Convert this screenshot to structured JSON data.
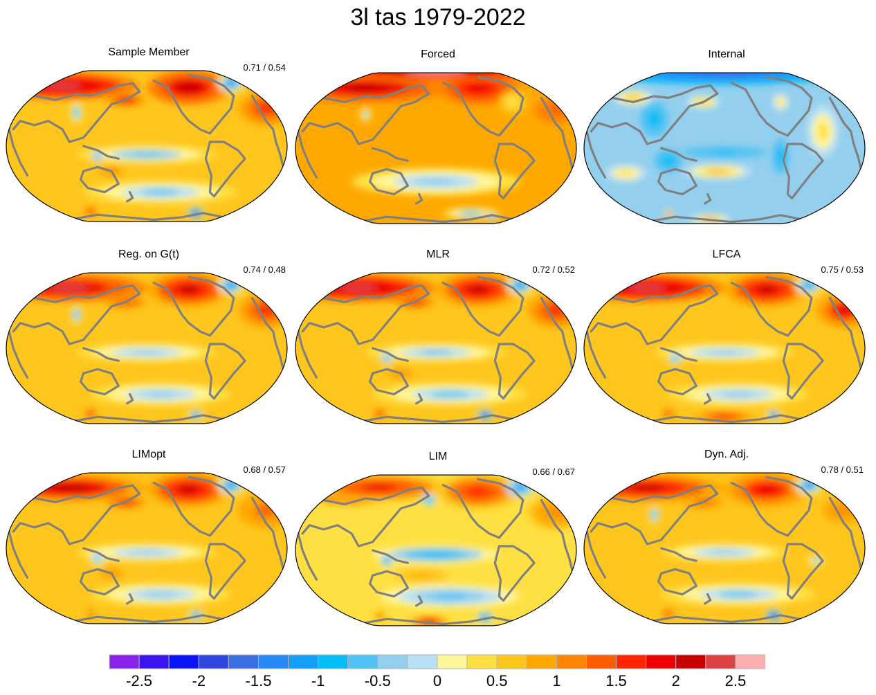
{
  "figure": {
    "title": "3l tas 1979-2022"
  },
  "chart_data": {
    "type": "heatmap",
    "title": "3l tas 1979-2022",
    "projection": "robinson (pacific-centered)",
    "colorbar": {
      "levels": [
        -2.75,
        -2.5,
        -2.25,
        -2,
        -1.75,
        -1.5,
        -1.25,
        -1,
        -0.75,
        -0.5,
        -0.25,
        0,
        0.25,
        0.5,
        0.75,
        1,
        1.25,
        1.5,
        1.75,
        2,
        2.25,
        2.5,
        2.75
      ],
      "colors": [
        "#8a22ee",
        "#3c14f0",
        "#0a14f8",
        "#3048e0",
        "#3a6ee2",
        "#2888f5",
        "#14a0fa",
        "#00bef8",
        "#52c2f2",
        "#94cfee",
        "#b9e1f4",
        "#fff59a",
        "#ffe043",
        "#ffc61e",
        "#ffa900",
        "#ff8500",
        "#ff5c00",
        "#ff2500",
        "#ec0000",
        "#c80000",
        "#de4244",
        "#ffafaf"
      ],
      "tick_labels": [
        "-2.5",
        "-2",
        "-1.5",
        "-1",
        "-0.5",
        "0",
        "0.5",
        "1",
        "1.5",
        "2",
        "2.5"
      ],
      "tick_values": [
        -2.5,
        -2,
        -1.5,
        -1,
        -0.5,
        0,
        0.5,
        1,
        1.5,
        2,
        2.5
      ],
      "range": [
        -2.75,
        2.75
      ]
    },
    "panels": [
      {
        "name": "Sample Member",
        "corr": "0.71 / 0.54",
        "base": 0.6,
        "blobs": [
          [
            -0.6,
            0.72,
            0.55,
            0.12,
            2.4
          ],
          [
            0.3,
            0.7,
            0.3,
            0.15,
            2.2
          ],
          [
            -0.15,
            0.55,
            0.15,
            0.06,
            1.8
          ],
          [
            0.85,
            0.45,
            0.2,
            0.15,
            1.5
          ],
          [
            0.0,
            -0.1,
            0.5,
            0.08,
            -0.6
          ],
          [
            0.1,
            -0.55,
            0.55,
            0.1,
            -0.5
          ],
          [
            -0.25,
            -0.3,
            0.12,
            0.06,
            1.1
          ],
          [
            0.6,
            0.75,
            0.1,
            0.08,
            -1.3
          ],
          [
            -0.35,
            -0.12,
            0.06,
            0.06,
            -0.7
          ],
          [
            0.35,
            -0.8,
            0.06,
            0.05,
            -2.0
          ],
          [
            -0.4,
            -0.78,
            0.05,
            0.04,
            1.6
          ],
          [
            -0.5,
            0.4,
            0.04,
            0.08,
            -0.9
          ]
        ]
      },
      {
        "name": "Forced",
        "corr": "",
        "base": 0.75,
        "blobs": [
          [
            -0.5,
            0.72,
            0.6,
            0.13,
            2.1
          ],
          [
            0.3,
            0.72,
            0.3,
            0.15,
            1.9
          ],
          [
            0.0,
            0.92,
            0.9,
            0.08,
            2.7
          ],
          [
            0.85,
            0.45,
            0.2,
            0.15,
            1.4
          ],
          [
            0.0,
            -0.4,
            0.6,
            0.12,
            -0.3
          ],
          [
            0.25,
            -0.78,
            0.2,
            0.05,
            -0.6
          ],
          [
            0.4,
            -0.82,
            0.05,
            0.04,
            -1.2
          ],
          [
            0.55,
            0.55,
            0.1,
            0.1,
            0.4
          ],
          [
            -0.5,
            0.4,
            0.04,
            0.06,
            -0.6
          ]
        ]
      },
      {
        "name": "Internal",
        "corr": "",
        "base": -0.5,
        "blobs": [
          [
            0.0,
            0.9,
            0.9,
            0.1,
            -1.6
          ],
          [
            -0.65,
            0.6,
            0.15,
            0.07,
            0.7
          ],
          [
            -0.15,
            0.55,
            0.12,
            0.06,
            0.6
          ],
          [
            -0.05,
            -0.28,
            0.25,
            0.07,
            0.8
          ],
          [
            0.4,
            0.55,
            0.08,
            0.1,
            0.3
          ],
          [
            0.7,
            0.2,
            0.15,
            0.3,
            0.25
          ],
          [
            -0.5,
            0.35,
            0.1,
            0.15,
            -0.9
          ],
          [
            -0.4,
            -0.15,
            0.1,
            0.1,
            -1.0
          ],
          [
            0.4,
            -0.1,
            0.06,
            0.15,
            -1.0
          ],
          [
            -0.1,
            -0.85,
            0.15,
            0.05,
            0.9
          ],
          [
            -0.4,
            -0.78,
            0.04,
            0.04,
            1.0
          ],
          [
            0.0,
            -0.05,
            0.3,
            0.05,
            -0.8
          ],
          [
            -0.7,
            -0.3,
            0.2,
            0.1,
            0.3
          ]
        ]
      },
      {
        "name": "Reg. on G(t)",
        "corr": "0.74 / 0.48",
        "base": 0.65,
        "blobs": [
          [
            -0.55,
            0.72,
            0.55,
            0.12,
            2.3
          ],
          [
            0.3,
            0.7,
            0.3,
            0.15,
            2.0
          ],
          [
            -0.15,
            0.55,
            0.15,
            0.06,
            1.4
          ],
          [
            0.85,
            0.45,
            0.2,
            0.15,
            1.6
          ],
          [
            0.0,
            -0.05,
            0.5,
            0.08,
            -0.4
          ],
          [
            0.1,
            -0.55,
            0.5,
            0.1,
            -0.5
          ],
          [
            0.6,
            0.75,
            0.1,
            0.08,
            -1.4
          ],
          [
            0.35,
            -0.8,
            0.06,
            0.05,
            -1.3
          ],
          [
            -0.4,
            -0.78,
            0.05,
            0.04,
            1.5
          ],
          [
            -0.5,
            0.4,
            0.04,
            0.08,
            -0.8
          ]
        ]
      },
      {
        "name": "MLR",
        "corr": "0.72 / 0.52",
        "base": 0.6,
        "blobs": [
          [
            -0.55,
            0.72,
            0.55,
            0.12,
            2.4
          ],
          [
            0.3,
            0.7,
            0.3,
            0.15,
            2.1
          ],
          [
            -0.15,
            0.55,
            0.15,
            0.06,
            1.6
          ],
          [
            0.85,
            0.45,
            0.2,
            0.15,
            1.5
          ],
          [
            0.0,
            -0.05,
            0.5,
            0.08,
            -0.5
          ],
          [
            0.1,
            -0.55,
            0.55,
            0.1,
            -0.5
          ],
          [
            -0.25,
            -0.3,
            0.12,
            0.06,
            1.0
          ],
          [
            0.6,
            0.75,
            0.1,
            0.08,
            -1.3
          ],
          [
            0.35,
            -0.8,
            0.06,
            0.05,
            -2.0
          ],
          [
            -0.4,
            -0.78,
            0.05,
            0.04,
            1.6
          ],
          [
            -0.35,
            -0.12,
            0.06,
            0.06,
            -0.7
          ]
        ]
      },
      {
        "name": "LFCA",
        "corr": "0.75 / 0.53",
        "base": 0.65,
        "blobs": [
          [
            -0.55,
            0.72,
            0.55,
            0.12,
            2.4
          ],
          [
            0.3,
            0.7,
            0.3,
            0.15,
            2.0
          ],
          [
            0.85,
            0.45,
            0.2,
            0.15,
            1.8
          ],
          [
            0.0,
            -0.05,
            0.5,
            0.08,
            -0.4
          ],
          [
            0.1,
            -0.55,
            0.5,
            0.1,
            -0.5
          ],
          [
            0.6,
            0.75,
            0.1,
            0.08,
            -1.2
          ],
          [
            0.35,
            -0.8,
            0.06,
            0.05,
            -1.6
          ],
          [
            0.0,
            -0.82,
            0.2,
            0.05,
            1.6
          ],
          [
            -0.4,
            -0.78,
            0.05,
            0.04,
            1.4
          ],
          [
            -0.35,
            -0.12,
            0.06,
            0.06,
            -0.8
          ]
        ]
      },
      {
        "name": "LIMopt",
        "corr": "0.68 / 0.57",
        "base": 0.55,
        "blobs": [
          [
            -0.55,
            0.72,
            0.55,
            0.12,
            2.2
          ],
          [
            0.3,
            0.7,
            0.3,
            0.15,
            2.0
          ],
          [
            -0.15,
            0.55,
            0.15,
            0.06,
            1.5
          ],
          [
            0.85,
            0.45,
            0.2,
            0.15,
            1.4
          ],
          [
            0.0,
            -0.05,
            0.5,
            0.08,
            -0.5
          ],
          [
            0.1,
            -0.55,
            0.5,
            0.1,
            -0.5
          ],
          [
            -0.25,
            -0.3,
            0.12,
            0.06,
            1.0
          ],
          [
            0.6,
            0.75,
            0.1,
            0.08,
            -1.3
          ],
          [
            0.35,
            -0.8,
            0.06,
            0.05,
            -1.5
          ],
          [
            -0.4,
            -0.78,
            0.05,
            0.04,
            1.2
          ],
          [
            -0.35,
            -0.12,
            0.06,
            0.06,
            -0.8
          ]
        ]
      },
      {
        "name": "LIM",
        "corr": "0.66 / 0.67",
        "base": 0.3,
        "blobs": [
          [
            -0.6,
            0.68,
            0.3,
            0.1,
            2.8
          ],
          [
            -0.4,
            0.75,
            0.5,
            0.12,
            1.8
          ],
          [
            0.3,
            0.7,
            0.3,
            0.15,
            1.7
          ],
          [
            0.85,
            0.45,
            0.2,
            0.15,
            1.2
          ],
          [
            0.0,
            -0.05,
            0.45,
            0.08,
            -0.8
          ],
          [
            0.1,
            -0.55,
            0.5,
            0.1,
            -0.6
          ],
          [
            -0.1,
            -0.3,
            0.25,
            0.08,
            0.8
          ],
          [
            0.6,
            0.75,
            0.1,
            0.08,
            -1.3
          ],
          [
            -0.05,
            -0.85,
            0.15,
            0.05,
            2.0
          ],
          [
            0.35,
            -0.8,
            0.06,
            0.05,
            -1.3
          ],
          [
            -0.4,
            -0.78,
            0.05,
            0.04,
            1.2
          ],
          [
            -0.35,
            -0.12,
            0.06,
            0.06,
            -0.8
          ],
          [
            -0.05,
            0.6,
            0.05,
            0.05,
            -1.0
          ]
        ]
      },
      {
        "name": "Dyn. Adj.",
        "corr": "0.78 / 0.51",
        "base": 0.6,
        "blobs": [
          [
            -0.55,
            0.72,
            0.55,
            0.12,
            2.1
          ],
          [
            0.3,
            0.7,
            0.3,
            0.15,
            1.8
          ],
          [
            -0.15,
            0.55,
            0.15,
            0.06,
            1.3
          ],
          [
            0.85,
            0.45,
            0.2,
            0.15,
            1.1
          ],
          [
            0.0,
            -0.05,
            0.45,
            0.08,
            -0.3
          ],
          [
            0.1,
            -0.55,
            0.55,
            0.1,
            -0.5
          ],
          [
            0.6,
            0.75,
            0.1,
            0.08,
            -1.4
          ],
          [
            0.35,
            -0.8,
            0.06,
            0.05,
            -2.1
          ],
          [
            -0.4,
            -0.78,
            0.05,
            0.04,
            1.4
          ],
          [
            -0.5,
            0.4,
            0.04,
            0.08,
            -0.8
          ],
          [
            0.65,
            -0.15,
            0.06,
            0.05,
            -0.6
          ]
        ]
      }
    ]
  }
}
